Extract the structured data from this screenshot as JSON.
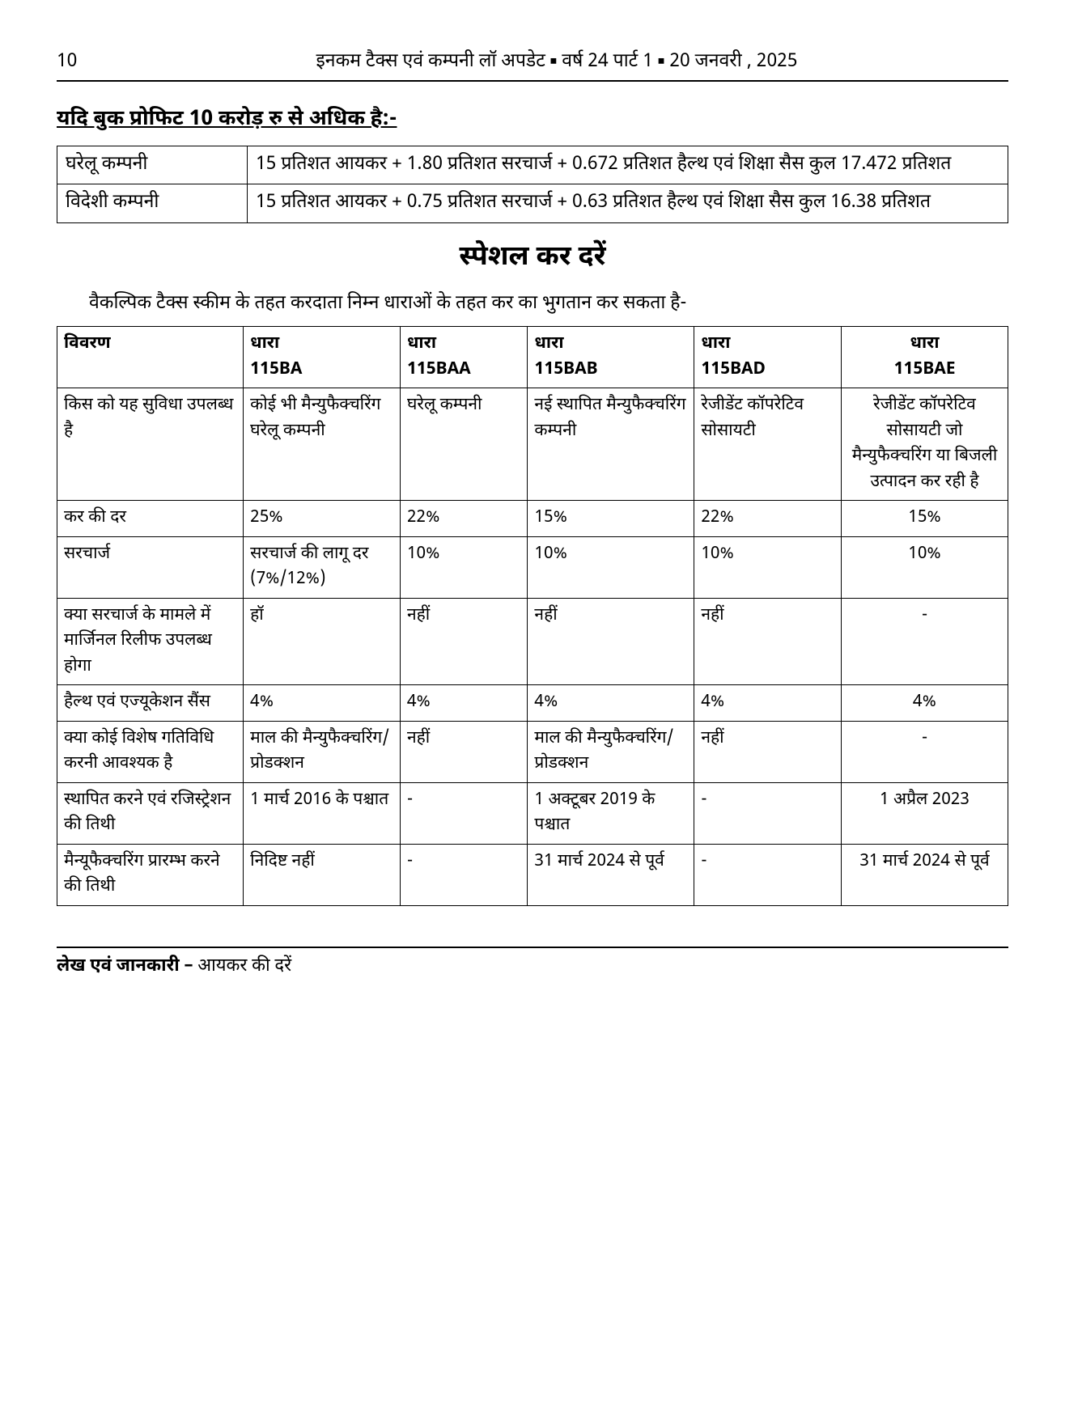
{
  "header": {
    "page_number": "10",
    "title_left": "इनकम टैक्स एवं कम्पनी लॉ अपडेट",
    "title_mid": "वर्ष 24 पार्ट 1",
    "title_right": "20 जनवरी , 2025"
  },
  "section1": {
    "heading": "यदि बुक प्रोफिट 10 करोड़ रु से अधिक है:-",
    "rows": [
      {
        "label": "घरेलू कम्पनी",
        "value": "15 प्रतिशत आयकर + 1.80 प्रतिशत सरचार्ज + 0.672 प्रतिशत हैल्थ एवं शिक्षा सैस कुल 17.472 प्रतिशत"
      },
      {
        "label": "विदेशी कम्पनी",
        "value": "15 प्रतिशत आयकर + 0.75 प्रतिशत सरचार्ज + 0.63 प्रतिशत हैल्थ एवं शिक्षा सैस कुल 16.38 प्रतिशत"
      }
    ]
  },
  "special": {
    "title": "स्पेशल कर दरें",
    "intro": "वैकल्पिक टैक्स स्कीम के तहत करदाता निम्न धाराओं के तहत कर का भुगतान कर सकता है-",
    "columns": [
      "विवरण",
      "धारा 115BA",
      "धारा 115BAA",
      "धारा 115BAB",
      "धारा 115BAD",
      "धारा 115BAE"
    ],
    "col_widths": [
      "19%",
      "16%",
      "13%",
      "17%",
      "15%",
      "17%"
    ],
    "col_align": [
      "left",
      "left",
      "left",
      "left",
      "left",
      "center"
    ],
    "rows": [
      [
        "किस को यह सुविधा उपलब्ध है",
        "कोई भी मैन्युफैक्चरिंग घरेलू कम्पनी",
        "घरेलू कम्पनी",
        "नई स्थापित मैन्युफैक्चरिंग कम्पनी",
        "रेजीडेंट कॉपरेटिव सोसायटी",
        "रेजीडेंट कॉपरेटिव सोसायटी जो मैन्युफैक्चरिंग या बिजली उत्पादन कर रही है"
      ],
      [
        "कर की दर",
        "25%",
        "22%",
        "15%",
        "22%",
        "15%"
      ],
      [
        "सरचार्ज",
        "सरचार्ज की लागू दर (7%/12%)",
        "10%",
        "10%",
        "10%",
        "10%"
      ],
      [
        "क्या सरचार्ज के मामले में मार्जिनल रिलीफ उपलब्ध होगा",
        "हॉ",
        "नहीं",
        "नहीं",
        "नहीं",
        "-"
      ],
      [
        "हैल्थ एवं एज्यूकेशन सैंस",
        "4%",
        "4%",
        "4%",
        "4%",
        "4%"
      ],
      [
        "क्या कोई विशेष गतिविधि करनी आवश्यक है",
        "माल की मैन्युफैक्चरिंग/ प्रोडक्शन",
        "नहीं",
        "माल की मैन्युफैक्चरिंग/ प्रोडक्शन",
        "नहीं",
        "-"
      ],
      [
        "स्थापित करने एवं रजिस्ट्रेशन की तिथी",
        "1 मार्च 2016 के पश्चात",
        "-",
        "1 अक्टूबर 2019 के पश्चात",
        "-",
        "1 अप्रैल 2023"
      ],
      [
        "मैन्यूफैक्चरिंग प्रारम्भ करने की तिथी",
        "निदिष्ट नहीं",
        "-",
        "31 मार्च 2024 से पूर्व",
        "-",
        "31 मार्च 2024 से पूर्व"
      ]
    ]
  },
  "footer": {
    "label": "लेख एवं जानकारी –",
    "text": "आयकर की दरें"
  }
}
